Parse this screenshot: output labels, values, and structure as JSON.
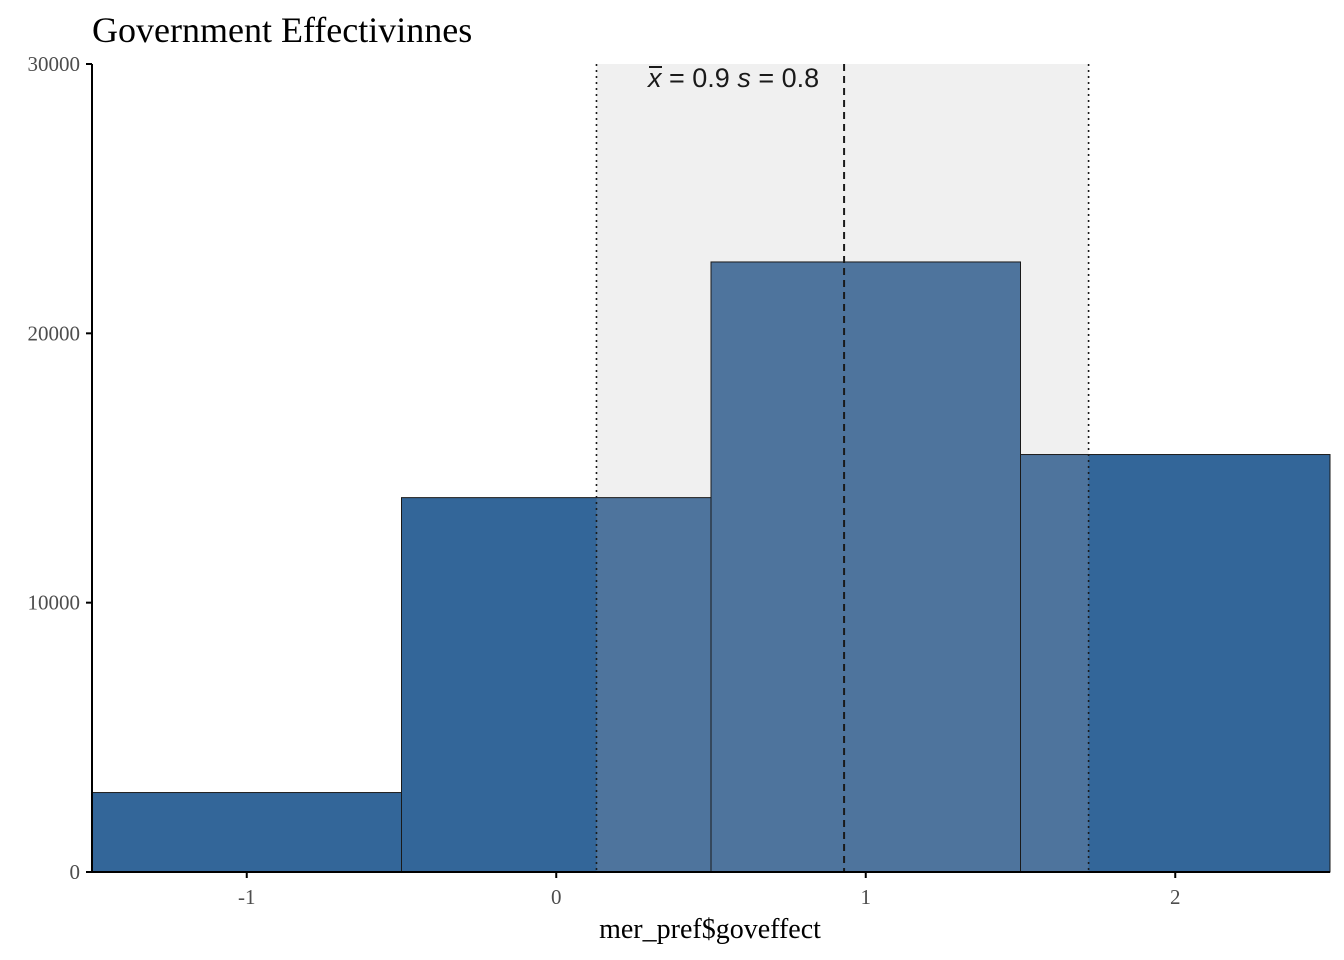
{
  "chart_data": {
    "type": "bar",
    "title": "Government Effectivinnes",
    "xlabel": "mer_pref$goveffect",
    "ylabel": "",
    "bins": [
      {
        "center": -1,
        "count": 2950
      },
      {
        "center": 0,
        "count": 13900
      },
      {
        "center": 1,
        "count": 22650
      },
      {
        "center": 2,
        "count": 15500
      }
    ],
    "bin_width": 1,
    "xlim": [
      -1.5,
      2.5
    ],
    "ylim": [
      0,
      30000
    ],
    "x_ticks": [
      -1,
      0,
      1,
      2
    ],
    "x_tick_labels": [
      "-1",
      "0",
      "1",
      "2"
    ],
    "y_ticks": [
      0,
      10000,
      20000,
      30000
    ],
    "y_tick_labels": [
      "0",
      "10000",
      "20000",
      "30000"
    ],
    "mean": 0.93,
    "sd": 0.79,
    "sd_band": [
      0.13,
      1.72
    ],
    "annotation": {
      "mean_symbol": "x",
      "mean_text": " = 0.9  ",
      "sd_symbol": "s",
      "sd_text": " = 0.8"
    },
    "grid": false,
    "colors": {
      "bar_fill": "#336699",
      "bar_highlight_fill": "#4e749d",
      "bar_stroke": "#1a1a1a",
      "sd_band": "#f0f0f0",
      "axis": "#000000",
      "reference_lines": "#1a1a1a"
    }
  }
}
